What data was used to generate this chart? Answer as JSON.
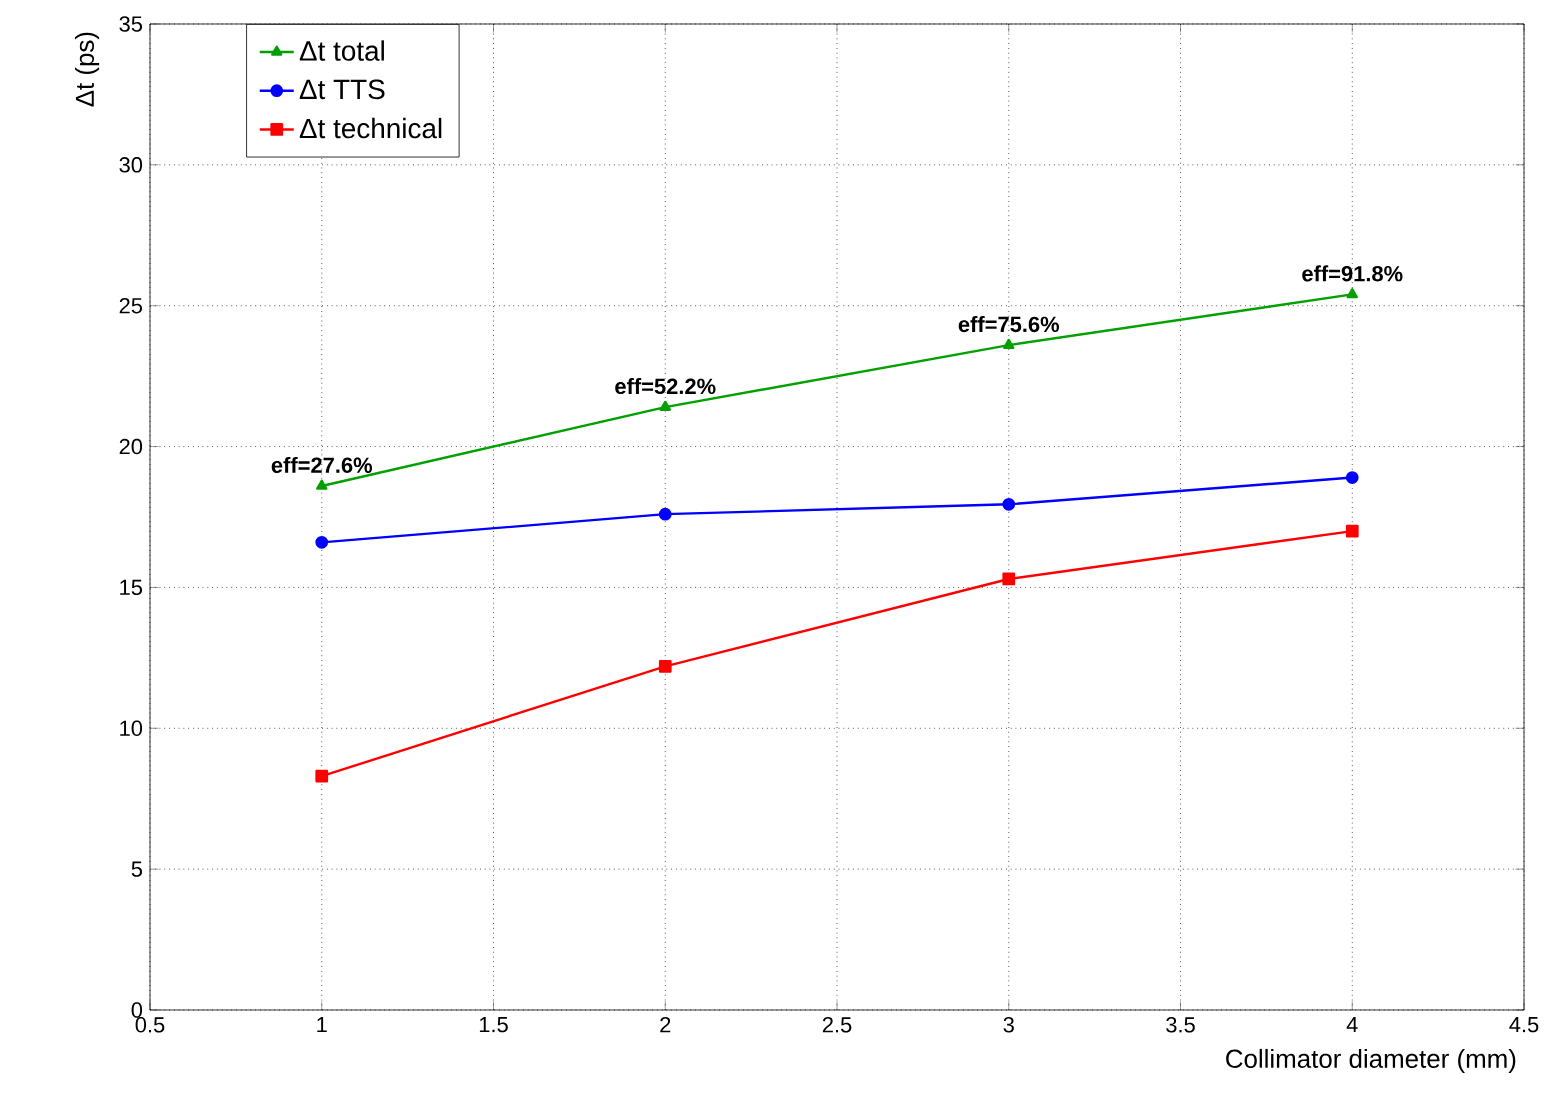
{
  "chart_data": {
    "type": "line",
    "xlabel": "Collimator diameter (mm)",
    "ylabel": "Δt (ps)",
    "xlim": [
      0.5,
      4.5
    ],
    "xticks": [
      0.5,
      1,
      1.5,
      2,
      2.5,
      3,
      3.5,
      4,
      4.5
    ],
    "ylim": [
      0,
      35
    ],
    "yticks": [
      0,
      5,
      10,
      15,
      20,
      25,
      30,
      35
    ],
    "grid": true,
    "legend": "top left",
    "line_style": "solid",
    "series": [
      {
        "name": "Δt total",
        "color": "#00a000",
        "marker": "triangle",
        "x": [
          1,
          2,
          3,
          4
        ],
        "values": [
          18.6,
          21.4,
          23.6,
          25.4
        ]
      },
      {
        "name": "Δt TTS",
        "color": "#0000ff",
        "marker": "circle",
        "x": [
          1,
          2,
          3,
          4
        ],
        "values": [
          16.6,
          17.6,
          17.95,
          18.9
        ]
      },
      {
        "name": "Δt technical",
        "color": "#ff0000",
        "marker": "square",
        "x": [
          1,
          2,
          3,
          4
        ],
        "values": [
          8.3,
          12.2,
          15.3,
          17.0
        ]
      }
    ],
    "annotations": [
      {
        "text": "eff=27.6%",
        "x": 1,
        "y": 18.6
      },
      {
        "text": "eff=52.2%",
        "x": 2,
        "y": 21.4
      },
      {
        "text": "eff=75.6%",
        "x": 3,
        "y": 23.6
      },
      {
        "text": "eff=91.8%",
        "x": 4,
        "y": 25.4
      }
    ]
  }
}
